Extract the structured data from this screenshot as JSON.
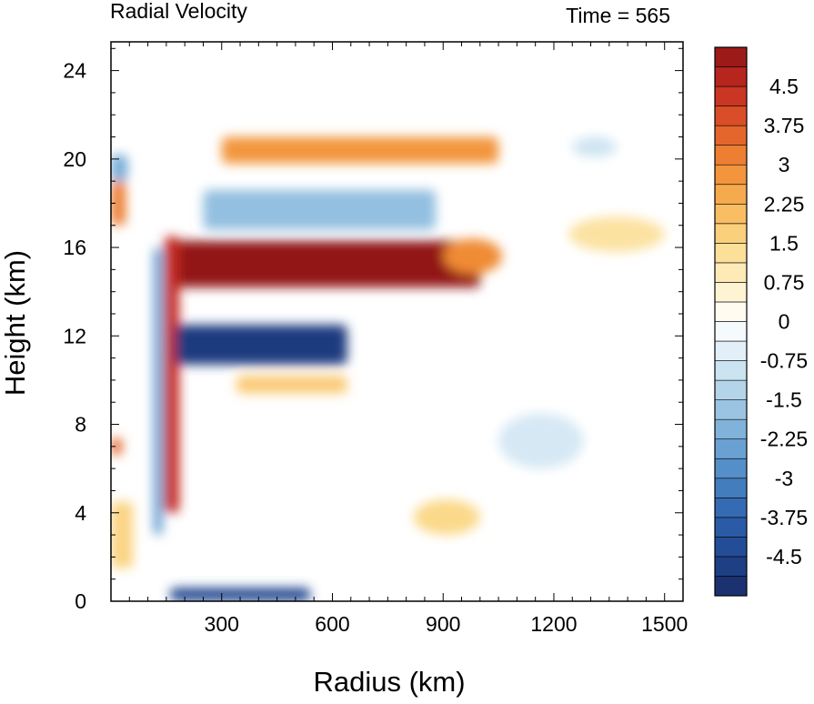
{
  "chart_data": {
    "type": "heatmap",
    "title": "Radial Velocity",
    "subtitle": "Time = 565",
    "xlabel": "Radius (km)",
    "ylabel": "Height (km)",
    "xlim": [
      0,
      1550
    ],
    "ylim": [
      0,
      25.3
    ],
    "x_ticks": [
      300,
      600,
      900,
      1200,
      1500
    ],
    "y_ticks": [
      0,
      4,
      8,
      12,
      16,
      20,
      24
    ],
    "x_tick_labels": [
      "300",
      "600",
      "900",
      "1200",
      "1500"
    ],
    "y_tick_labels": [
      "0",
      "4",
      "8",
      "12",
      "16",
      "20",
      "24"
    ],
    "colorbar": {
      "range": [
        -5.25,
        5.25
      ],
      "level_step": 0.375,
      "tick_values": [
        4.5,
        3.75,
        3,
        2.25,
        1.5,
        0.75,
        0,
        -0.75,
        -1.5,
        -2.25,
        -3,
        -3.75,
        -4.5
      ],
      "tick_labels": [
        "4.5",
        "3.75",
        "3",
        "2.25",
        "1.5",
        "0.75",
        "0",
        "-0.75",
        "-1.5",
        "-2.25",
        "-3",
        "-3.75",
        "-4.5"
      ],
      "low_color": "#1a2a66",
      "mid_color": "#ffffff",
      "high_color": "#8e1616"
    },
    "features": [
      {
        "name": "upper-level outflow jet",
        "type": "rect",
        "x": [
          160,
          1000
        ],
        "y": [
          14.2,
          16.3
        ],
        "value": 5.2
      },
      {
        "name": "outflow jet tip",
        "type": "ellipse",
        "x": [
          900,
          1060
        ],
        "y": [
          14.8,
          16.4
        ],
        "value": 3.0
      },
      {
        "name": "eyewall updraft band",
        "type": "rect",
        "x": [
          145,
          185
        ],
        "y": [
          4.0,
          16.5
        ],
        "value": 4.5
      },
      {
        "name": "mid-level inflow",
        "type": "rect",
        "x": [
          175,
          640
        ],
        "y": [
          10.7,
          12.5
        ],
        "value": -4.8
      },
      {
        "name": "upper outflow band",
        "type": "rect",
        "x": [
          300,
          1050
        ],
        "y": [
          19.8,
          21.0
        ],
        "value": 2.8
      },
      {
        "name": "upper inflow band",
        "type": "rect",
        "x": [
          250,
          880
        ],
        "y": [
          16.8,
          18.6
        ],
        "value": -1.8
      },
      {
        "name": "outer upper outflow",
        "type": "ellipse",
        "x": [
          1240,
          1500
        ],
        "y": [
          15.8,
          17.4
        ],
        "value": 1.2
      },
      {
        "name": "mid-level outflow",
        "type": "rect",
        "x": [
          340,
          640
        ],
        "y": [
          9.4,
          10.2
        ],
        "value": 1.8
      },
      {
        "name": "boundary layer inflow",
        "type": "rect",
        "x": [
          160,
          540
        ],
        "y": [
          0.0,
          0.6
        ],
        "value": -4.5
      },
      {
        "name": "low-level outflow",
        "type": "ellipse",
        "x": [
          820,
          1000
        ],
        "y": [
          3.0,
          4.6
        ],
        "value": 1.5
      },
      {
        "name": "outer weak inflow",
        "type": "ellipse",
        "x": [
          1050,
          1280
        ],
        "y": [
          6.0,
          8.5
        ],
        "value": -0.8
      },
      {
        "name": "outer upper inflow",
        "type": "ellipse",
        "x": [
          1250,
          1370
        ],
        "y": [
          20.1,
          21.0
        ],
        "value": -0.9
      },
      {
        "name": "inner-core positive band",
        "type": "rect",
        "x": [
          0,
          40
        ],
        "y": [
          17.0,
          19.0
        ],
        "value": 3.2
      },
      {
        "name": "inner-core negative band",
        "type": "rect",
        "x": [
          0,
          45
        ],
        "y": [
          19.0,
          20.2
        ],
        "value": -2.2
      },
      {
        "name": "inner-core low positive",
        "type": "rect",
        "x": [
          0,
          30
        ],
        "y": [
          6.6,
          7.4
        ],
        "value": 3.6
      },
      {
        "name": "inner-core shallow outflow",
        "type": "rect",
        "x": [
          0,
          60
        ],
        "y": [
          1.5,
          4.5
        ],
        "value": 1.6
      },
      {
        "name": "eye negative streak",
        "type": "rect",
        "x": [
          115,
          140
        ],
        "y": [
          3.0,
          16.0
        ],
        "value": -2.5
      }
    ]
  }
}
